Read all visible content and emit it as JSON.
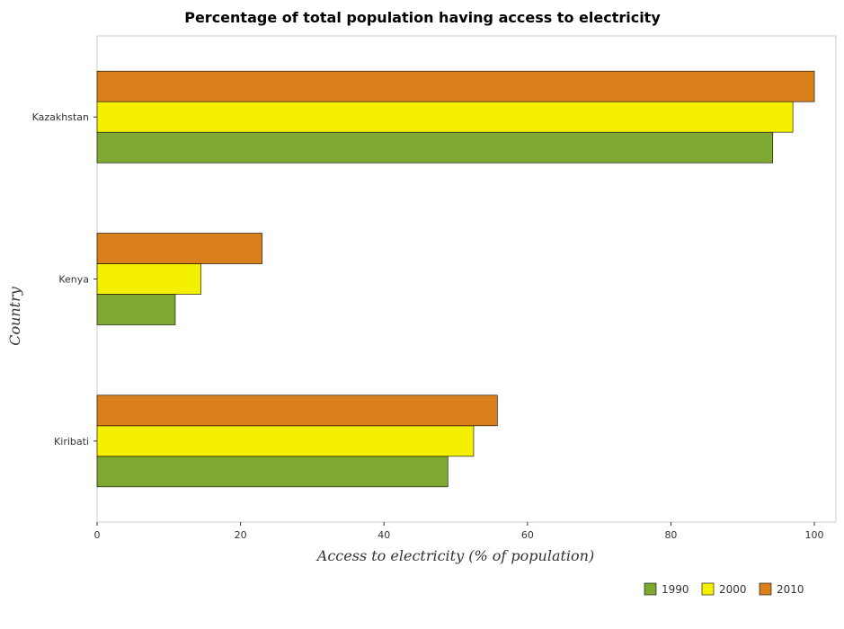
{
  "chart_data": {
    "type": "bar",
    "orientation": "horizontal",
    "title": "Percentage of total population having access to electricity",
    "xlabel": "Access to electricity (% of population)",
    "ylabel": "Country",
    "categories": [
      "Kazakhstan",
      "Kenya",
      "Kiribati"
    ],
    "series": [
      {
        "name": "1990",
        "color": "#7fa832",
        "values": [
          94.2,
          10.9,
          48.9
        ]
      },
      {
        "name": "2000",
        "color": "#f5f000",
        "values": [
          97.0,
          14.5,
          52.5
        ]
      },
      {
        "name": "2010",
        "color": "#d9801c",
        "values": [
          100.0,
          23.0,
          55.8
        ]
      }
    ],
    "xlim": [
      0,
      103
    ],
    "xticks": [
      0,
      20,
      40,
      60,
      80,
      100
    ],
    "grid": false,
    "legend_position": "bottom-right"
  }
}
